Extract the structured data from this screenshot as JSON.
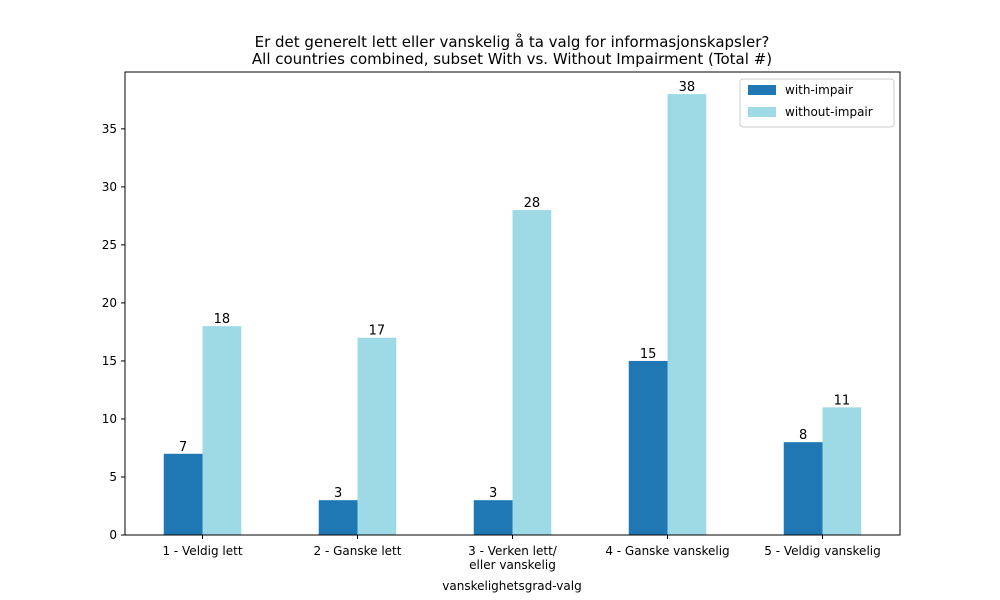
{
  "chart_data": {
    "type": "bar",
    "title": "Er det generelt lett eller vanskelig å ta valg for informasjonskapsler?",
    "subtitle": "All countries combined, subset With vs. Without Impairment (Total #)",
    "xlabel": "vanskelighetsgrad-valg",
    "ylabel": "",
    "categories": [
      [
        "1 - Veldig lett"
      ],
      [
        "2 - Ganske lett"
      ],
      [
        "3 - Verken lett/",
        "eller vanskelig"
      ],
      [
        "4 - Ganske vanskelig"
      ],
      [
        "5 - Veldig vanskelig"
      ]
    ],
    "series": [
      {
        "name": "with-impair",
        "color": "#1f77b4",
        "values": [
          7,
          3,
          3,
          15,
          8
        ]
      },
      {
        "name": "without-impair",
        "color": "#9edae5",
        "values": [
          18,
          17,
          28,
          38,
          11
        ]
      }
    ],
    "ylim": [
      0,
      39.9
    ],
    "yticks": [
      0,
      5,
      10,
      15,
      20,
      25,
      30,
      35
    ],
    "grid": false,
    "legend_position": "top-right"
  }
}
